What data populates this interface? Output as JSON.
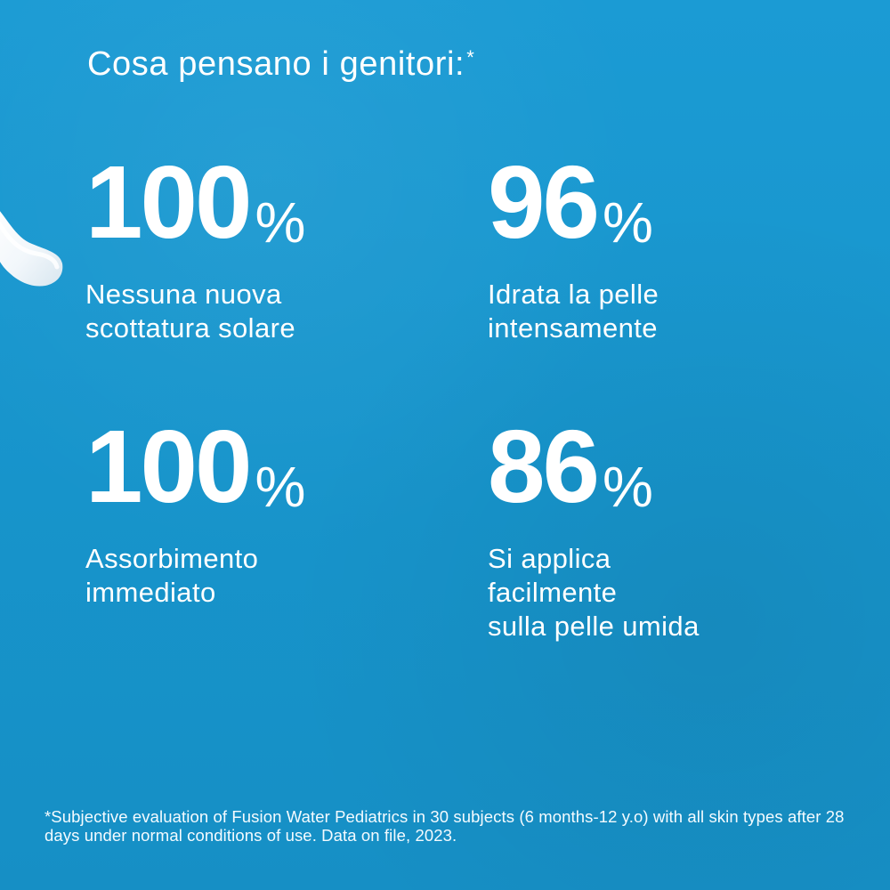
{
  "headline": {
    "text": "Cosa pensano i genitori:",
    "marker": "*"
  },
  "stats": [
    {
      "value": "100",
      "unit": "%",
      "description": "Nessuna nuova\nscottatura solare"
    },
    {
      "value": "96",
      "unit": "%",
      "description": "Idrata la pelle\nintensamente"
    },
    {
      "value": "100",
      "unit": "%",
      "description": "Assorbimento\nimmediato"
    },
    {
      "value": "86",
      "unit": "%",
      "description": "Si applica\nfacilmente\nsulla pelle umida"
    }
  ],
  "footnote": "*Subjective evaluation of Fusion Water Pediatrics in 30 subjects (6 months-12 y.o) with all skin types after 28 days under normal conditions of use. Data on file, 2023.",
  "theme": {
    "background": "#1a97cf",
    "text": "#ffffff"
  }
}
